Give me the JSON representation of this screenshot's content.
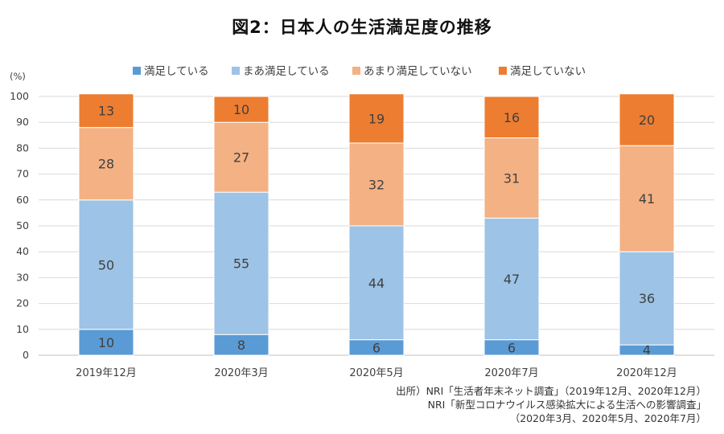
{
  "title": "図2：日本人の生活満足度の推移",
  "chart_data": {
    "type": "bar",
    "stacked": true,
    "unit": "(%)",
    "categories": [
      "2019年12月",
      "2020年3月",
      "2020年5月",
      "2020年7月",
      "2020年12月"
    ],
    "series": [
      {
        "name": "満足している",
        "values": [
          10,
          8,
          6,
          6,
          4
        ],
        "color": "#5b9bd5"
      },
      {
        "name": "まあ満足している",
        "values": [
          50,
          55,
          44,
          47,
          36
        ],
        "color": "#9dc3e6"
      },
      {
        "name": "あまり満足していない",
        "values": [
          28,
          27,
          32,
          31,
          41
        ],
        "color": "#f4b183"
      },
      {
        "name": "満足していない",
        "values": [
          13,
          10,
          19,
          16,
          20
        ],
        "color": "#ed7d31"
      }
    ],
    "ylim": [
      0,
      100
    ],
    "yticks": [
      0,
      10,
      20,
      30,
      40,
      50,
      60,
      70,
      80,
      90,
      100
    ],
    "grid": true,
    "legend": "top"
  },
  "source": {
    "line1": "出所）NRI「生活者年末ネット調査」（2019年12月、2020年12月）",
    "line2": "NRI「新型コロナウイルス感染拡大による生活への影響調査」",
    "line3": "（2020年3月、2020年5月、2020年7月）"
  }
}
